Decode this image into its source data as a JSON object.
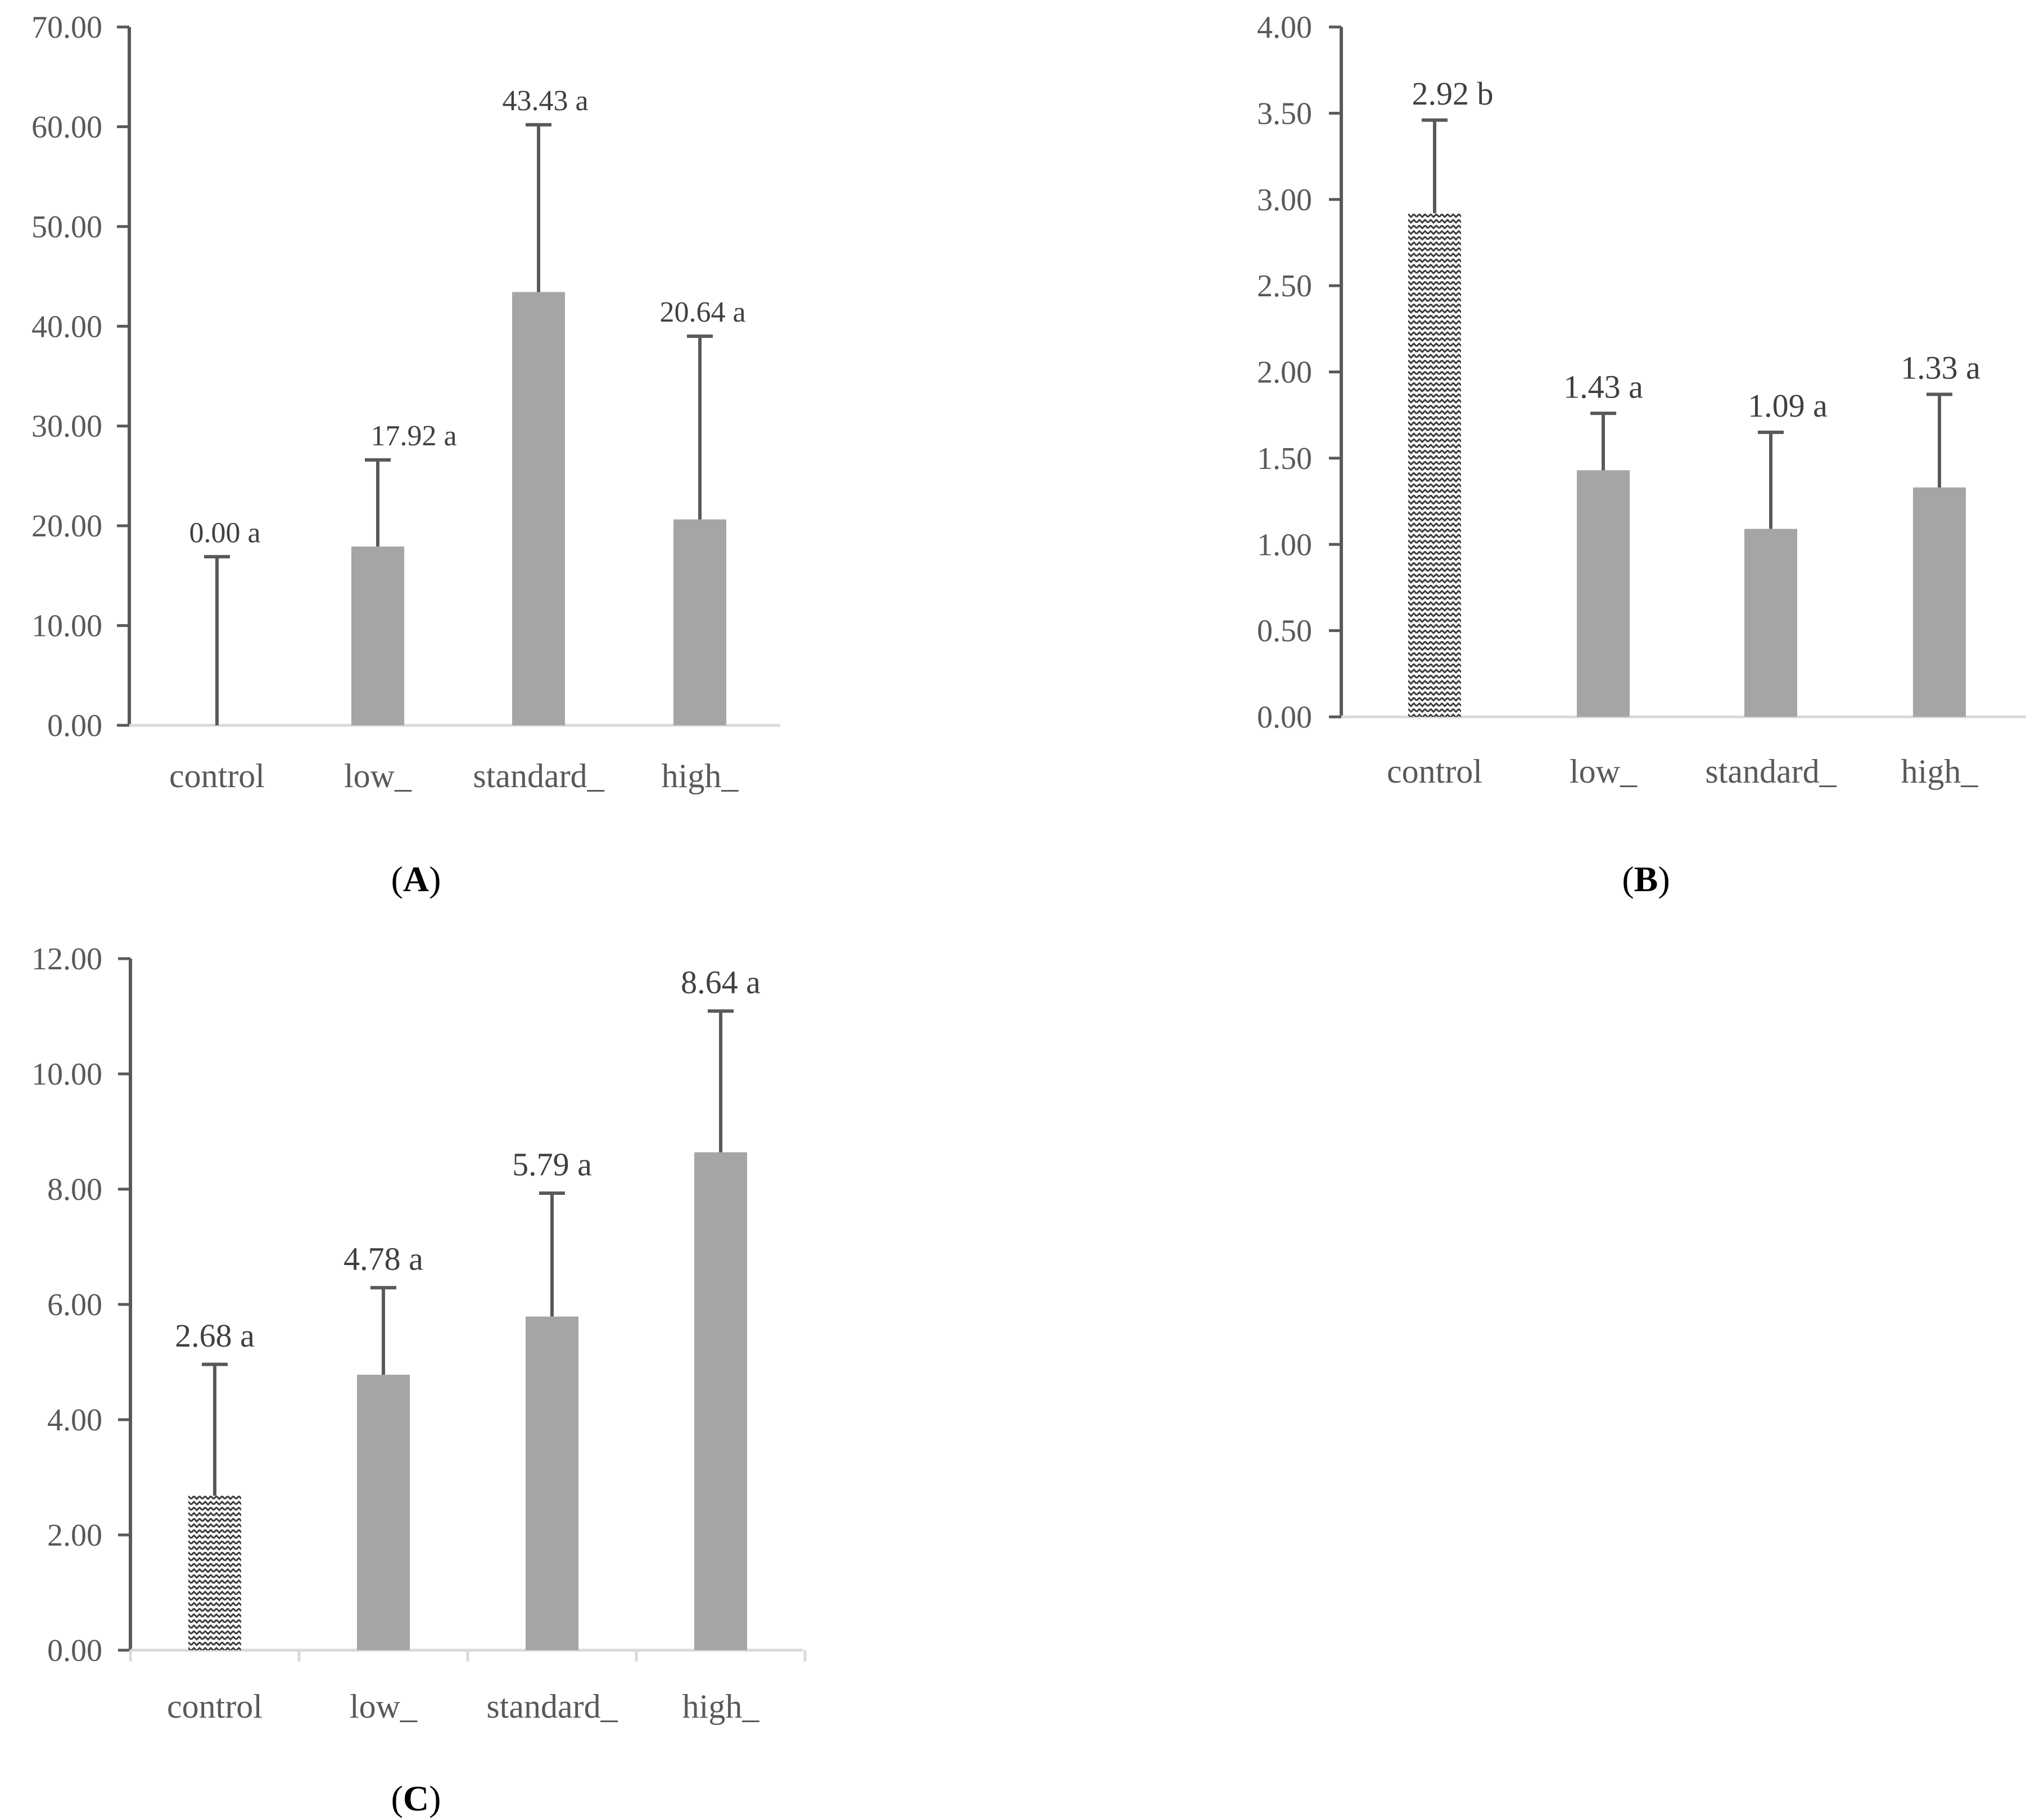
{
  "chart_data": [
    {
      "panel": "A",
      "type": "bar",
      "caption_label": "A",
      "categories": [
        "control",
        "low_",
        "standard_",
        "high_"
      ],
      "values": [
        0.0,
        17.92,
        43.43,
        20.64
      ],
      "error_upper": [
        16.9,
        26.6,
        60.2,
        39.0
      ],
      "data_labels": [
        "0.00 a",
        "17.92 a",
        "43.43 a",
        "20.64 a"
      ],
      "bar_patterns": [
        "solid",
        "solid",
        "solid",
        "solid"
      ],
      "yticks": [
        "0.00",
        "10.00",
        "20.00",
        "30.00",
        "40.00",
        "50.00",
        "60.00",
        "70.00"
      ],
      "ylim": [
        0,
        70
      ],
      "ystep": 10,
      "title": "",
      "xlabel": "",
      "ylabel": ""
    },
    {
      "panel": "B",
      "type": "bar",
      "caption_label": "B",
      "categories": [
        "control",
        "low_",
        "standard_",
        "high_"
      ],
      "values": [
        2.92,
        1.43,
        1.09,
        1.33
      ],
      "error_upper": [
        3.46,
        1.76,
        1.65,
        1.87
      ],
      "data_labels": [
        "2.92 b",
        "1.43 a",
        "1.09 a",
        "1.33 a"
      ],
      "bar_patterns": [
        "hatched",
        "solid",
        "solid",
        "solid"
      ],
      "yticks": [
        "0.00",
        "0.50",
        "1.00",
        "1.50",
        "2.00",
        "2.50",
        "3.00",
        "3.50",
        "4.00"
      ],
      "ylim": [
        0,
        4
      ],
      "ystep": 0.5,
      "title": "",
      "xlabel": "",
      "ylabel": ""
    },
    {
      "panel": "C",
      "type": "bar",
      "caption_label": "C",
      "categories": [
        "control",
        "low_",
        "standard_",
        "high_"
      ],
      "values": [
        2.68,
        4.78,
        5.79,
        8.64
      ],
      "error_upper": [
        4.96,
        6.29,
        7.93,
        11.09
      ],
      "data_labels": [
        "2.68 a",
        "4.78 a",
        "5.79 a",
        "8.64 a"
      ],
      "bar_patterns": [
        "hatched",
        "solid",
        "solid",
        "solid"
      ],
      "yticks": [
        "0.00",
        "2.00",
        "4.00",
        "6.00",
        "8.00",
        "10.00",
        "12.00"
      ],
      "ylim": [
        0,
        12
      ],
      "ystep": 2,
      "title": "",
      "xlabel": "",
      "ylabel": ""
    }
  ],
  "colors": {
    "bar": "#a5a5a5",
    "axis": "#d9d9d9",
    "yaxis": "#595959",
    "errorbar": "#595959",
    "tick_text": "#595959",
    "label_text": "#404040"
  }
}
